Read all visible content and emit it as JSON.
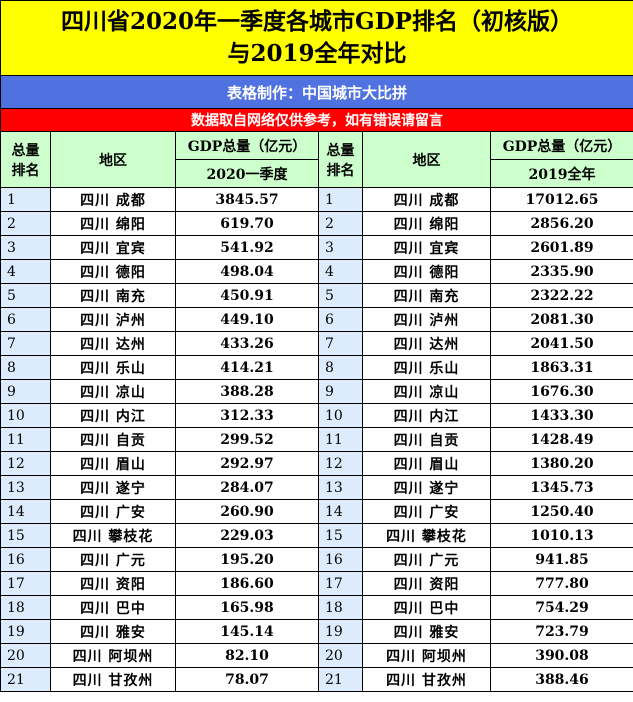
{
  "header": {
    "title_lines": [
      "四川省2020年一季度各城市GDP排名（初核版）",
      "与2019全年对比"
    ],
    "maker": "表格制作：中国城市大比拼",
    "note": "数据取自网络仅供参考，如有错误请留言"
  },
  "table": {
    "columns_left": {
      "rank": [
        "总量",
        "排名"
      ],
      "region": "地区",
      "gdp": "GDP总量（亿元）",
      "period": "2020一季度"
    },
    "columns_right": {
      "rank": [
        "总量",
        "排名"
      ],
      "region": "地区",
      "gdp": "GDP总量（亿元）",
      "period": "2019全年"
    },
    "rows": [
      [
        1,
        "四川 成都",
        "3845.57",
        1,
        "四川 成都",
        "17012.65"
      ],
      [
        2,
        "四川 绵阳",
        "619.70",
        2,
        "四川 绵阳",
        "2856.20"
      ],
      [
        3,
        "四川 宜宾",
        "541.92",
        3,
        "四川 宜宾",
        "2601.89"
      ],
      [
        4,
        "四川 德阳",
        "498.04",
        4,
        "四川 德阳",
        "2335.90"
      ],
      [
        5,
        "四川 南充",
        "450.91",
        5,
        "四川 南充",
        "2322.22"
      ],
      [
        6,
        "四川 泸州",
        "449.10",
        6,
        "四川 泸州",
        "2081.30"
      ],
      [
        7,
        "四川 达州",
        "433.26",
        7,
        "四川 达州",
        "2041.50"
      ],
      [
        8,
        "四川 乐山",
        "414.21",
        8,
        "四川 乐山",
        "1863.31"
      ],
      [
        9,
        "四川 凉山",
        "388.28",
        9,
        "四川 凉山",
        "1676.30"
      ],
      [
        10,
        "四川 内江",
        "312.33",
        10,
        "四川 内江",
        "1433.30"
      ],
      [
        11,
        "四川 自贡",
        "299.52",
        11,
        "四川 自贡",
        "1428.49"
      ],
      [
        12,
        "四川 眉山",
        "292.97",
        12,
        "四川 眉山",
        "1380.20"
      ],
      [
        13,
        "四川 遂宁",
        "284.07",
        13,
        "四川 遂宁",
        "1345.73"
      ],
      [
        14,
        "四川 广安",
        "260.90",
        14,
        "四川 广安",
        "1250.40"
      ],
      [
        15,
        "四川 攀枝花",
        "229.03",
        15,
        "四川 攀枝花",
        "1010.13"
      ],
      [
        16,
        "四川 广元",
        "195.20",
        16,
        "四川 广元",
        "941.85"
      ],
      [
        17,
        "四川 资阳",
        "186.60",
        17,
        "四川 资阳",
        "777.80"
      ],
      [
        18,
        "四川 巴中",
        "165.98",
        18,
        "四川 巴中",
        "754.29"
      ],
      [
        19,
        "四川 雅安",
        "145.14",
        19,
        "四川 雅安",
        "723.79"
      ],
      [
        20,
        "四川 阿坝州",
        "82.10",
        20,
        "四川 阿坝州",
        "390.08"
      ],
      [
        21,
        "四川 甘孜州",
        "78.07",
        21,
        "四川 甘孜州",
        "388.46"
      ]
    ]
  }
}
